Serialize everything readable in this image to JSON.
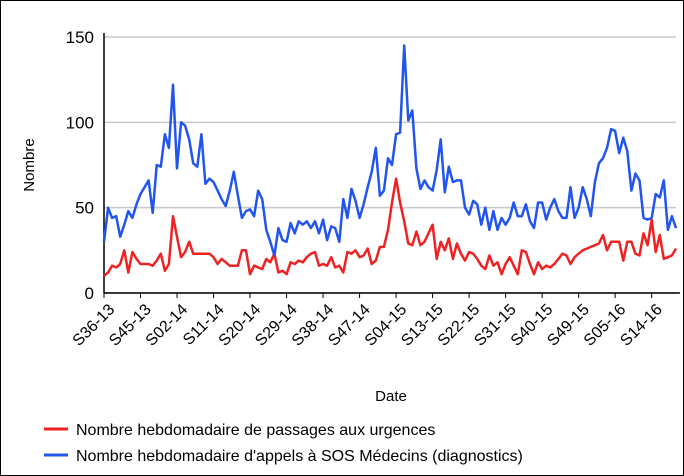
{
  "chart_data": {
    "type": "line",
    "xlabel": "Date",
    "ylabel": "Nombre",
    "categories": [
      "S36-13",
      null,
      null,
      null,
      null,
      null,
      null,
      null,
      null,
      "S45-13",
      null,
      null,
      null,
      null,
      null,
      null,
      null,
      null,
      "S02-14",
      null,
      null,
      null,
      null,
      null,
      null,
      null,
      null,
      "S11-14",
      null,
      null,
      null,
      null,
      null,
      null,
      null,
      null,
      "S20-14",
      null,
      null,
      null,
      null,
      null,
      null,
      null,
      null,
      "S29-14",
      null,
      null,
      null,
      null,
      null,
      null,
      null,
      null,
      "S38-14",
      null,
      null,
      null,
      null,
      null,
      null,
      null,
      null,
      "S47-14",
      null,
      null,
      null,
      null,
      null,
      null,
      null,
      null,
      "S04-15",
      null,
      null,
      null,
      null,
      null,
      null,
      null,
      null,
      "S13-15",
      null,
      null,
      null,
      null,
      null,
      null,
      null,
      null,
      "S22-15",
      null,
      null,
      null,
      null,
      null,
      null,
      null,
      null,
      "S31-15",
      null,
      null,
      null,
      null,
      null,
      null,
      null,
      null,
      "S40-15",
      null,
      null,
      null,
      null,
      null,
      null,
      null,
      null,
      "S49-15",
      null,
      null,
      null,
      null,
      null,
      null,
      null,
      null,
      "S05-16",
      null,
      null,
      null,
      null,
      null,
      null,
      null,
      null,
      "S14-16",
      null,
      null,
      null,
      null,
      null,
      null
    ],
    "series": [
      {
        "name": "Nombre hebdomadaire de passages aux urgences",
        "color": "#ee2222",
        "values": [
          10,
          12,
          16,
          15,
          17,
          25,
          12,
          24,
          20,
          17,
          17,
          17,
          16,
          19,
          23,
          13,
          17,
          45,
          33,
          21,
          24,
          30,
          23,
          23,
          23,
          23,
          23,
          21,
          17,
          20,
          18,
          16,
          16,
          16,
          25,
          25,
          11,
          16,
          15,
          14,
          20,
          18,
          23,
          12,
          13,
          11,
          18,
          17,
          19,
          18,
          21,
          23,
          24,
          16,
          17,
          16,
          21,
          15,
          16,
          12,
          24,
          23,
          25,
          21,
          22,
          26,
          17,
          19,
          27,
          27,
          37,
          53,
          67,
          53,
          42,
          29,
          28,
          36,
          28,
          30,
          35,
          40,
          20,
          30,
          25,
          32,
          20,
          29,
          23,
          19,
          24,
          23,
          20,
          16,
          14,
          22,
          16,
          18,
          11,
          17,
          21,
          16,
          11,
          25,
          24,
          17,
          11,
          18,
          14,
          16,
          15,
          17,
          20,
          23,
          22,
          17,
          21,
          23,
          25,
          26,
          27,
          28,
          29,
          34,
          25,
          30,
          30,
          30,
          19,
          30,
          30,
          23,
          22,
          35,
          28,
          43,
          24,
          34,
          20,
          21,
          22,
          26
        ]
      },
      {
        "name": "Nombre hebdomadaire d'appels à SOS Médecins (diagnostics)",
        "color": "#2255ee",
        "values": [
          30,
          50,
          44,
          45,
          33,
          40,
          48,
          44,
          52,
          58,
          62,
          66,
          47,
          75,
          74,
          93,
          85,
          122,
          73,
          100,
          98,
          90,
          76,
          74,
          93,
          64,
          67,
          65,
          60,
          55,
          51,
          60,
          71,
          57,
          44,
          48,
          49,
          45,
          60,
          55,
          37,
          30,
          22,
          38,
          31,
          30,
          41,
          35,
          42,
          40,
          42,
          38,
          42,
          35,
          43,
          31,
          39,
          38,
          30,
          55,
          44,
          61,
          54,
          44,
          52,
          62,
          71,
          85,
          57,
          60,
          79,
          75,
          93,
          94,
          145,
          101,
          107,
          73,
          61,
          66,
          62,
          60,
          72,
          90,
          59,
          74,
          65,
          66,
          66,
          50,
          46,
          54,
          52,
          40,
          50,
          37,
          48,
          37,
          44,
          40,
          44,
          53,
          45,
          45,
          52,
          42,
          38,
          53,
          53,
          43,
          50,
          55,
          48,
          44,
          44,
          62,
          44,
          50,
          62,
          55,
          45,
          65,
          76,
          79,
          85,
          96,
          95,
          82,
          91,
          83,
          60,
          70,
          66,
          44,
          43,
          44,
          58,
          56,
          66,
          37,
          45,
          38
        ]
      }
    ],
    "ylim": [
      0,
      150
    ],
    "yticks": [
      0,
      50,
      100,
      150
    ],
    "grid": true
  }
}
